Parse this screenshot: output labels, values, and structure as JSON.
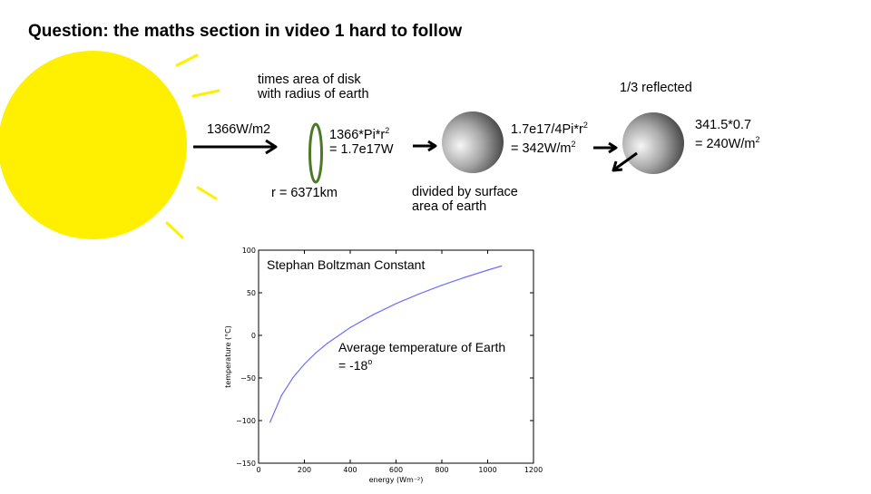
{
  "slide": {
    "title": "Question: the maths section in video 1 hard to follow"
  },
  "diagram": {
    "incoming_flux": "1366W/m2",
    "disk_caption_line1": "times area of disk",
    "disk_caption_line2": "with radius of earth",
    "disk_calc_line1": "1366*Pi*r",
    "disk_calc_line1_exp": "2",
    "disk_calc_line2": "= 1.7e17W",
    "radius_label": "r = 6371km",
    "divide_caption_line1": "divided by surface",
    "divide_caption_line2": "area of earth",
    "sphere_calc_line1": "1.7e17/4Pi*r",
    "sphere_calc_line1_exp": "2",
    "sphere_calc_line2": "= 342W/m",
    "sphere_calc_line2_exp": "2",
    "reflected_label": "1/3 reflected",
    "result_line1": "341.5*0.7",
    "result_line2": "= 240W/m",
    "result_line2_exp": "2"
  },
  "colors": {
    "sun": "#ffef00",
    "disk_ring": "#4b7a25",
    "plot_line": "#6d6dff"
  },
  "chart_data": {
    "type": "line",
    "title": "",
    "xlabel": "energy (Wm⁻²)",
    "ylabel": "temperature (°C)",
    "xlim": [
      0,
      1200
    ],
    "ylim": [
      -150,
      100
    ],
    "xticks": [
      0,
      200,
      400,
      600,
      800,
      1000,
      1200
    ],
    "yticks": [
      -150,
      -100,
      -50,
      0,
      50,
      100
    ],
    "grid": false,
    "series": [
      {
        "x": [
          50,
          100,
          150,
          200,
          250,
          300,
          400,
          500,
          600,
          700,
          800,
          900,
          1000,
          1060
        ],
        "y": [
          -102,
          -70.5,
          -49.6,
          -33.6,
          -20.5,
          -9.3,
          9.2,
          24.3,
          37.3,
          48.6,
          58.8,
          68.1,
          76.6,
          81.4
        ]
      }
    ],
    "annotations": [
      {
        "text": "Stephan Boltzman Constant"
      },
      {
        "text": "Average temperature of Earth",
        "text2": "= -18",
        "text2_sup": "o"
      }
    ]
  }
}
